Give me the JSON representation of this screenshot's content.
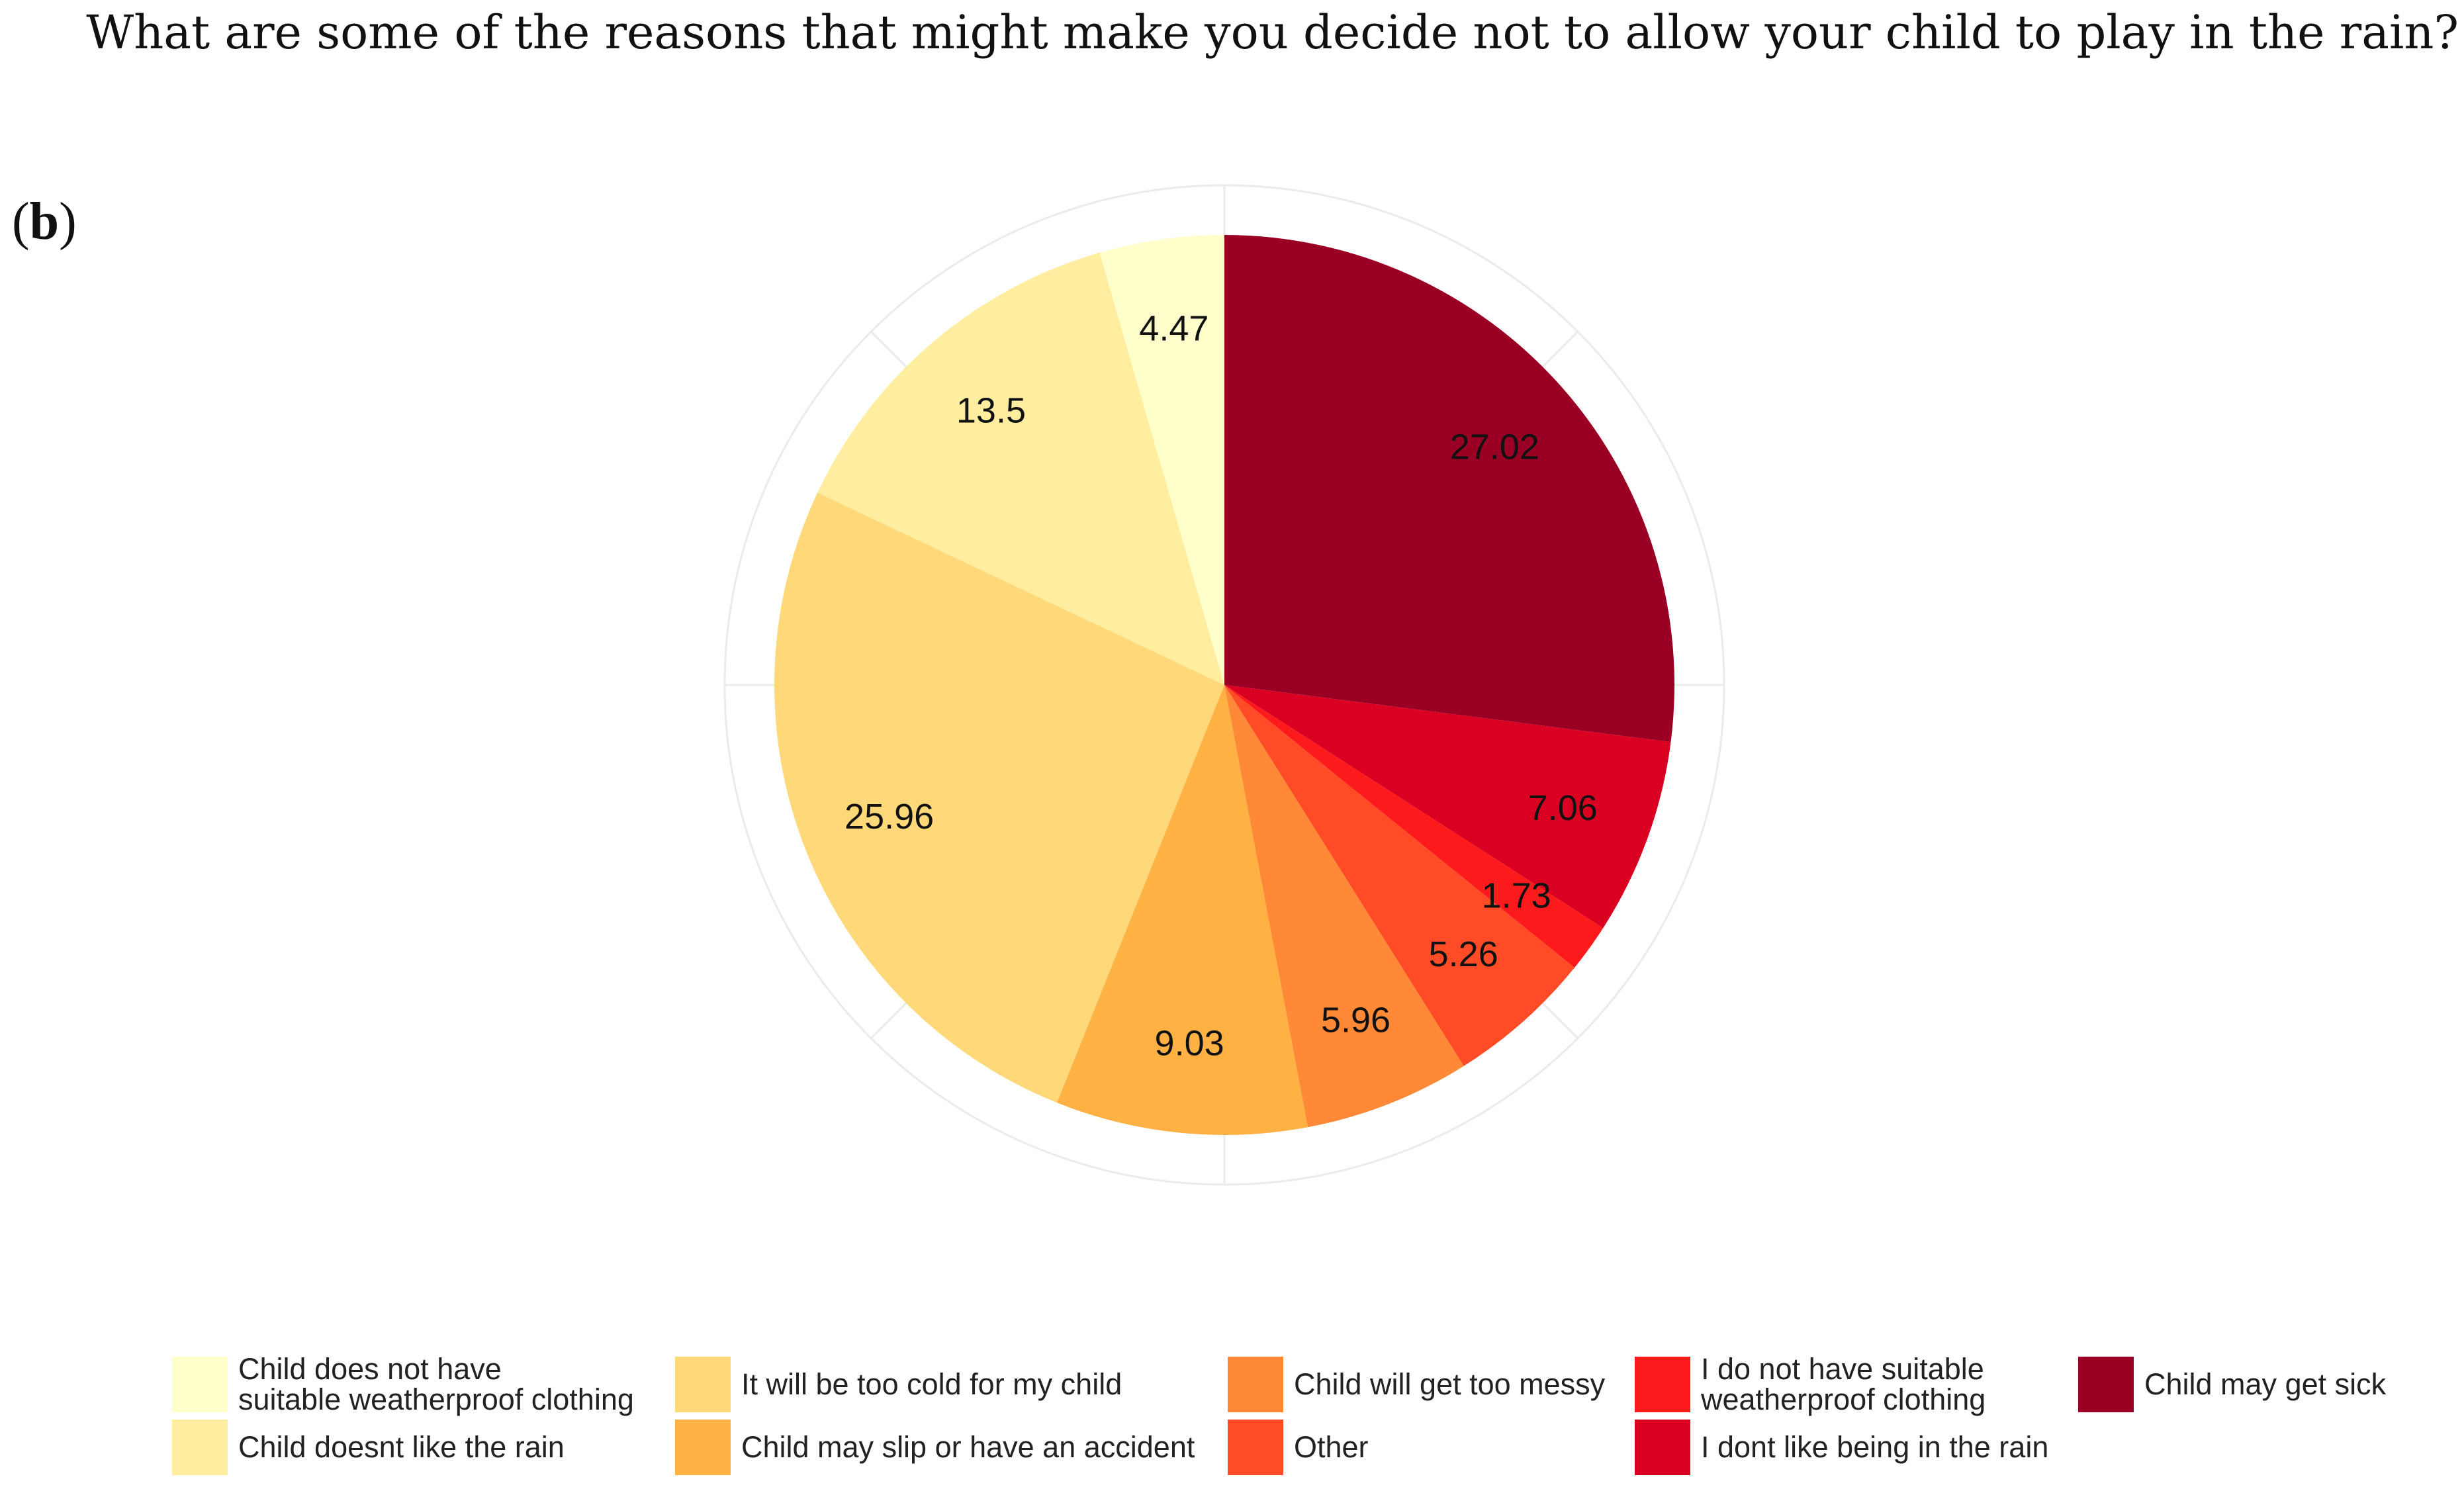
{
  "page": {
    "question": "What are some of the reasons that might make you decide not to allow your child to play in the rain?",
    "panel_label_open": "(",
    "panel_label_letter": "b",
    "panel_label_close": ")"
  },
  "chart_data": {
    "type": "pie",
    "title": "What are some of the reasons that might make you decide not to allow your child to play in the rain?",
    "unit": "percent",
    "start": "12 o'clock",
    "direction": "clockwise",
    "grid": true,
    "legend_position": "bottom",
    "slices": [
      {
        "label": "Child may get sick",
        "value": 27.02,
        "display": "27.02",
        "color": "#990024"
      },
      {
        "label": "I dont like being in the rain",
        "value": 7.06,
        "display": "7.06",
        "color": "#D90021"
      },
      {
        "label": "I do not have suitable\nweatherproof clothing",
        "value": 1.73,
        "display": "1.73",
        "color": "#FD1A1D"
      },
      {
        "label": "Other",
        "value": 5.26,
        "display": "5.26",
        "color": "#FF4C27"
      },
      {
        "label": "Child will get too messy",
        "value": 5.96,
        "display": "5.96",
        "color": "#FF8936"
      },
      {
        "label": "Child may slip or have an accident",
        "value": 9.03,
        "display": "9.03",
        "color": "#FFB144"
      },
      {
        "label": "It will be too cold for my child",
        "value": 25.96,
        "display": "25.96",
        "color": "#FFD979"
      },
      {
        "label": "Child doesnt like the rain",
        "value": 13.5,
        "display": "13.5",
        "color": "#FFEDA0"
      },
      {
        "label": "Child does not have\nsuitable weatherproof clothing",
        "value": 4.47,
        "display": "4.47",
        "color": "#FFFFCC"
      }
    ],
    "legend_order": [
      "Child does not have\nsuitable weatherproof clothing",
      "Child doesnt like the rain",
      "It will be too cold for my child",
      "Child may slip or have an accident",
      "Child will get too messy",
      "Other",
      "I do not have suitable\nweatherproof clothing",
      "I dont like being in the rain",
      "Child may get sick"
    ]
  }
}
